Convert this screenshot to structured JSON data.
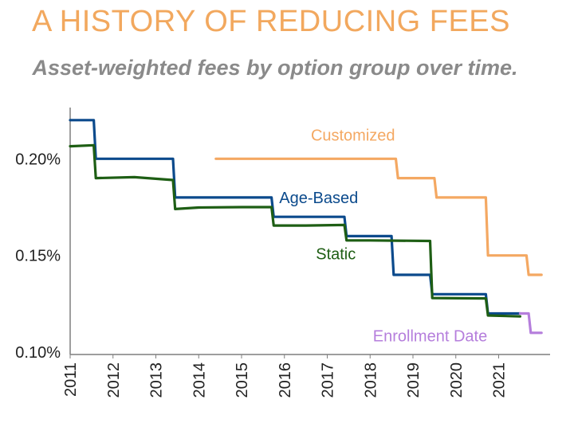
{
  "title": "A HISTORY OF REDUCING FEES",
  "subtitle": "Asset-weighted fees by option group over time.",
  "colors": {
    "title": "#F2A85E",
    "subtitle": "#8A8A8A",
    "customized": "#F4A862",
    "age_based": "#0B4A8C",
    "static": "#1E5E14",
    "enrollment_date": "#B57EDC",
    "axis": "#7F7F7F"
  },
  "chart_data": {
    "type": "line",
    "title": "A HISTORY OF REDUCING FEES",
    "subtitle": "Asset-weighted fees by option group over time.",
    "xlabel": "",
    "ylabel": "",
    "xlim": [
      2011,
      2022.2
    ],
    "ylim": [
      0.0988,
      0.2265
    ],
    "x_ticks": [
      "2011",
      "2012",
      "2013",
      "2014",
      "2015",
      "2016",
      "2017",
      "2018",
      "2019",
      "2020",
      "2021"
    ],
    "y_ticks": [
      {
        "value": 0.2,
        "label": "0.20%"
      },
      {
        "value": 0.15,
        "label": "0.15%"
      },
      {
        "value": 0.1,
        "label": "0.10%"
      }
    ],
    "grid": false,
    "legend": "inline labels",
    "series": [
      {
        "name": "Customized",
        "label_pos": [
          2017.6,
          0.2095
        ],
        "points": [
          [
            2014.4,
            0.2
          ],
          [
            2018.6,
            0.2
          ],
          [
            2018.65,
            0.19
          ],
          [
            2019.5,
            0.19
          ],
          [
            2019.55,
            0.18
          ],
          [
            2020.7,
            0.18
          ],
          [
            2020.75,
            0.15
          ],
          [
            2021.65,
            0.15
          ],
          [
            2021.7,
            0.14
          ],
          [
            2022.0,
            0.14
          ]
        ]
      },
      {
        "name": "Age-Based",
        "label_pos": [
          2016.8,
          0.177
        ],
        "points": [
          [
            2011.0,
            0.22
          ],
          [
            2011.55,
            0.22
          ],
          [
            2011.6,
            0.2
          ],
          [
            2013.4,
            0.2
          ],
          [
            2013.45,
            0.18
          ],
          [
            2015.7,
            0.18
          ],
          [
            2015.75,
            0.17
          ],
          [
            2017.4,
            0.17
          ],
          [
            2017.45,
            0.16
          ],
          [
            2018.5,
            0.16
          ],
          [
            2018.55,
            0.14
          ],
          [
            2019.4,
            0.14
          ],
          [
            2019.45,
            0.13
          ],
          [
            2020.7,
            0.13
          ],
          [
            2020.75,
            0.12
          ],
          [
            2021.5,
            0.12
          ]
        ]
      },
      {
        "name": "Static",
        "label_pos": [
          2017.2,
          0.148
        ],
        "points": [
          [
            2011.0,
            0.2065
          ],
          [
            2011.55,
            0.207
          ],
          [
            2011.6,
            0.19
          ],
          [
            2012.5,
            0.1905
          ],
          [
            2013.4,
            0.189
          ],
          [
            2013.45,
            0.174
          ],
          [
            2014.0,
            0.1748
          ],
          [
            2015.0,
            0.175
          ],
          [
            2015.7,
            0.175
          ],
          [
            2015.75,
            0.1655
          ],
          [
            2016.5,
            0.1655
          ],
          [
            2017.4,
            0.1658
          ],
          [
            2017.45,
            0.1578
          ],
          [
            2018.0,
            0.1578
          ],
          [
            2019.4,
            0.1575
          ],
          [
            2019.45,
            0.128
          ],
          [
            2020.7,
            0.1278
          ],
          [
            2020.75,
            0.119
          ],
          [
            2021.5,
            0.1185
          ]
        ]
      },
      {
        "name": "Enrollment Date",
        "label_pos": [
          2019.4,
          0.1055
        ],
        "points": [
          [
            2021.5,
            0.12
          ],
          [
            2021.7,
            0.12
          ],
          [
            2021.75,
            0.11
          ],
          [
            2022.0,
            0.11
          ]
        ]
      }
    ]
  }
}
